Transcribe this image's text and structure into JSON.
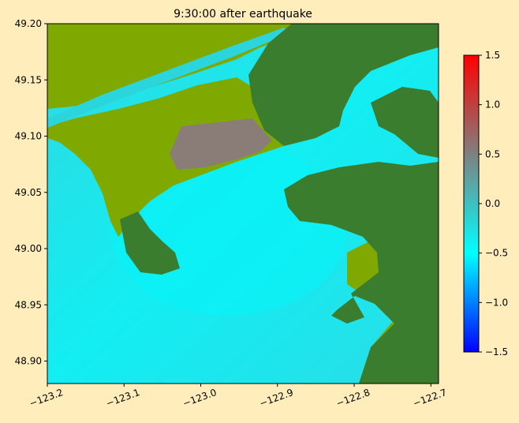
{
  "chart_data": {
    "type": "heatmap",
    "title": "9:30:00 after earthquake",
    "xlabel": "",
    "ylabel": "",
    "xlim": [
      -123.2,
      -122.69
    ],
    "ylim": [
      48.88,
      49.2
    ],
    "xticks": [
      -123.2,
      -123.1,
      -123.0,
      -122.9,
      -122.8,
      -122.7
    ],
    "xtick_labels": [
      "−123.2",
      "−123.1",
      "−123.0",
      "−122.9",
      "−122.8",
      "−122.7"
    ],
    "yticks": [
      48.9,
      48.95,
      49.0,
      49.05,
      49.1,
      49.15,
      49.2
    ],
    "ytick_labels": [
      "48.90",
      "48.95",
      "49.00",
      "49.05",
      "49.10",
      "49.15",
      "49.20"
    ],
    "grid": false,
    "colorbar": {
      "min": -1.5,
      "max": 1.5,
      "ticks": [
        -1.5,
        -1.0,
        -0.5,
        0.0,
        0.5,
        1.0,
        1.5
      ],
      "tick_labels": [
        "−1.5",
        "−1.0",
        "−0.5",
        "0.0",
        "0.5",
        "1.0",
        "1.5"
      ],
      "colors": [
        "#0000ff",
        "#00ffff",
        "#808080",
        "#ff0000"
      ]
    },
    "land_colors": {
      "dry_land": "#3a7d2e",
      "lowland": "#7fa800"
    }
  }
}
